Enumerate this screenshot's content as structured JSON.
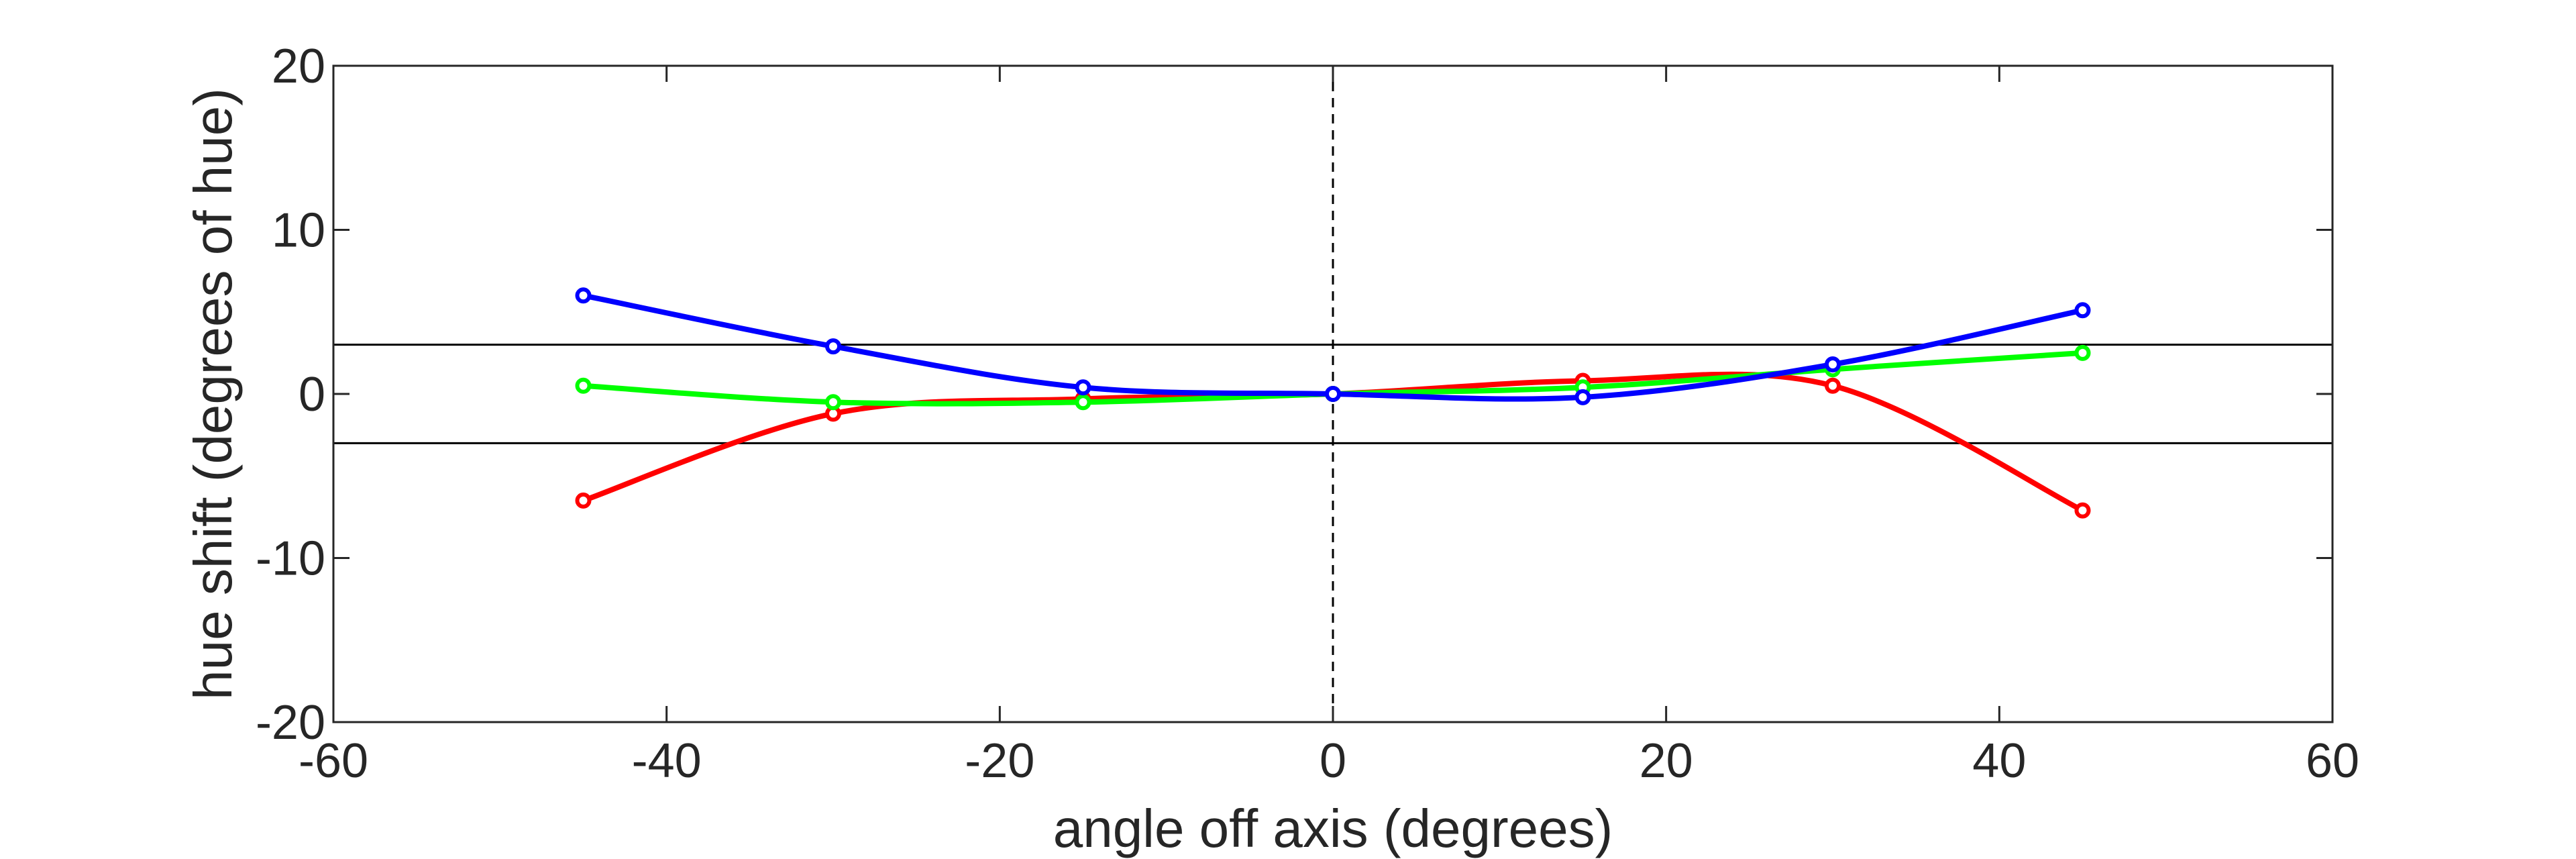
{
  "chart_data": {
    "type": "line",
    "title": "",
    "xlabel": "angle off axis (degrees)",
    "ylabel": "hue shift (degrees of hue)",
    "xlim": [
      -60,
      60
    ],
    "ylim": [
      -20,
      20
    ],
    "xticks": [
      -60,
      -40,
      -20,
      0,
      20,
      40,
      60
    ],
    "yticks": [
      -20,
      -10,
      0,
      10,
      20
    ],
    "x": [
      -45,
      -30,
      -15,
      0,
      15,
      30,
      45
    ],
    "series": [
      {
        "color": "#ff0000",
        "values": [
          -6.5,
          -1.2,
          -0.3,
          0,
          0.8,
          0.5,
          -7.1
        ]
      },
      {
        "color": "#00ff00",
        "values": [
          0.5,
          -0.5,
          -0.5,
          0,
          0.4,
          1.5,
          2.5
        ]
      },
      {
        "color": "#0000ff",
        "values": [
          6.0,
          2.9,
          0.4,
          0,
          -0.2,
          1.8,
          5.1
        ]
      }
    ],
    "reference_lines": [
      3,
      -3
    ],
    "center_line_x": 0,
    "grid": false,
    "legend": "none"
  }
}
